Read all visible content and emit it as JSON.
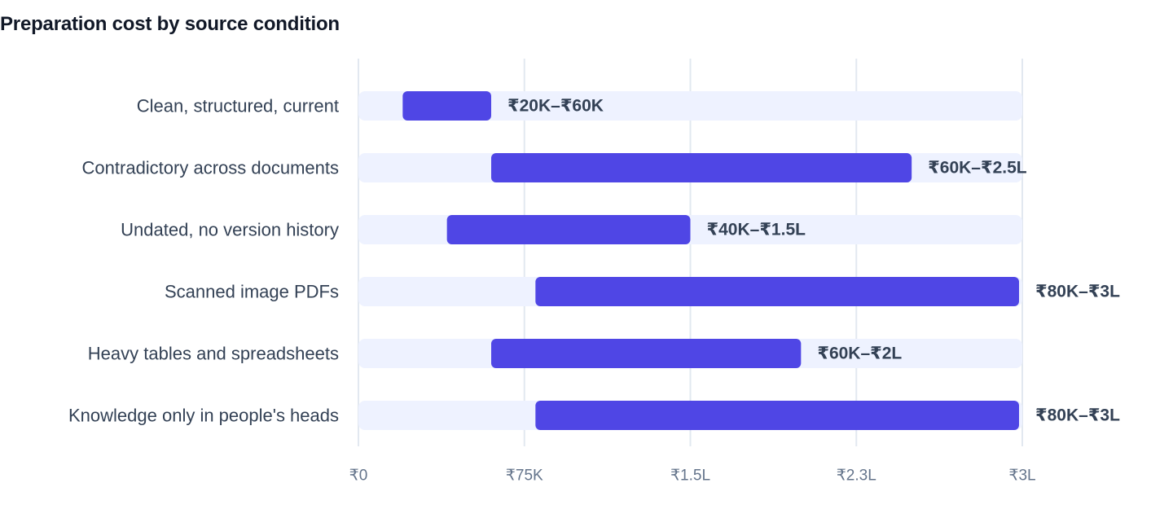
{
  "title": "Preparation cost by source condition",
  "chart_data": {
    "type": "bar",
    "orientation": "horizontal",
    "subtype": "range",
    "title": "Preparation cost by source condition",
    "xlabel": "",
    "ylabel": "",
    "unit": "INR",
    "xlim": [
      0,
      300000
    ],
    "grid": true,
    "legend": "none",
    "x_ticks": [
      {
        "value": 0,
        "label": "₹0"
      },
      {
        "value": 75000,
        "label": "₹75K"
      },
      {
        "value": 150000,
        "label": "₹1.5L"
      },
      {
        "value": 225000,
        "label": "₹2.3L"
      },
      {
        "value": 300000,
        "label": "₹3L"
      }
    ],
    "categories": [
      "Clean, structured, current",
      "Contradictory across documents",
      "Undated, no version history",
      "Scanned image PDFs",
      "Heavy tables and spreadsheets",
      "Knowledge only in people's heads"
    ],
    "ranges": [
      {
        "low": 20000,
        "high": 60000,
        "label": "₹20K–₹60K"
      },
      {
        "low": 60000,
        "high": 250000,
        "label": "₹60K–₹2.5L"
      },
      {
        "low": 40000,
        "high": 150000,
        "label": "₹40K–₹1.5L"
      },
      {
        "low": 80000,
        "high": 300000,
        "label": "₹80K–₹3L"
      },
      {
        "low": 60000,
        "high": 200000,
        "label": "₹60K–₹2L"
      },
      {
        "low": 80000,
        "high": 300000,
        "label": "₹80K–₹3L"
      }
    ],
    "colors": {
      "bar": "#4f46e5",
      "track": "#eef2ff",
      "grid": "#e2e8f0"
    }
  }
}
